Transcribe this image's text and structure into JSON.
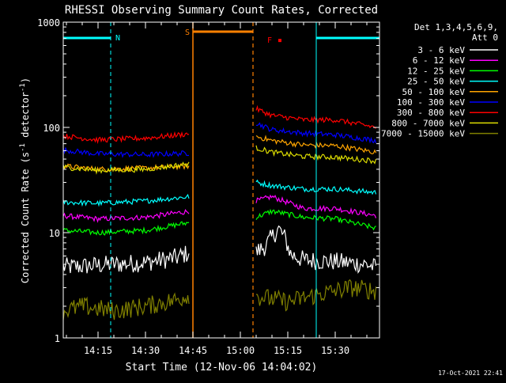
{
  "chart_data": {
    "type": "line",
    "title": "RHESSI Observing Summary Count Rates, Corrected",
    "xlabel": "Start Time (12-Nov-06 14:04:02)",
    "ylabel_main": "Corrected Count Rate (s",
    "ylabel_sup1": "-1",
    "ylabel_mid": " detector",
    "ylabel_sup2": "-1",
    "ylabel_end": ")",
    "yscale": "log",
    "ylim": [
      1,
      1000
    ],
    "xlim": [
      "14:04",
      "15:44"
    ],
    "x_ticks": [
      "14:15",
      "14:30",
      "14:45",
      "15:00",
      "15:15",
      "15:30"
    ],
    "y_ticks": [
      "1",
      "10",
      "100",
      "1000"
    ],
    "legend_position": "top-right",
    "legend_header": [
      "Det 1,3,4,5,6,9,",
      "Att 0"
    ],
    "series": [
      {
        "name": "3 - 6 keV",
        "color": "#ffffff",
        "segments": [
          {
            "x": [
              "14:04",
              "14:10",
              "14:20",
              "14:30",
              "14:40",
              "14:44"
            ],
            "y": [
              4.7,
              4.8,
              5.0,
              5.2,
              5.8,
              6.5
            ]
          },
          {
            "x": [
              "15:05",
              "15:08",
              "15:10",
              "15:12",
              "15:14",
              "15:16",
              "15:20",
              "15:30",
              "15:40",
              "15:43"
            ],
            "y": [
              6.5,
              7.5,
              9,
              11,
              9,
              6.2,
              5.5,
              5.3,
              5.0,
              4.6
            ]
          }
        ]
      },
      {
        "name": "6 - 12 keV",
        "color": "#ff00ff",
        "segments": [
          {
            "x": [
              "14:04",
              "14:15",
              "14:30",
              "14:44"
            ],
            "y": [
              14.5,
              13.5,
              14,
              16
            ]
          },
          {
            "x": [
              "15:05",
              "15:10",
              "15:20",
              "15:30",
              "15:43"
            ],
            "y": [
              20,
              22,
              17,
              17,
              14.5
            ]
          }
        ]
      },
      {
        "name": "12 - 25 keV",
        "color": "#00ff00",
        "segments": [
          {
            "x": [
              "14:04",
              "14:15",
              "14:30",
              "14:44"
            ],
            "y": [
              10.5,
              10,
              10.5,
              12.5
            ]
          },
          {
            "x": [
              "15:05",
              "15:10",
              "15:20",
              "15:30",
              "15:43"
            ],
            "y": [
              14,
              16,
              14,
              13.5,
              11
            ]
          }
        ]
      },
      {
        "name": "25 - 50 keV",
        "color": "#00ffff",
        "segments": [
          {
            "x": [
              "14:04",
              "14:15",
              "14:30",
              "14:44"
            ],
            "y": [
              19.5,
              19,
              20,
              22
            ]
          },
          {
            "x": [
              "15:05",
              "15:10",
              "15:20",
              "15:30",
              "15:43"
            ],
            "y": [
              30,
              28,
              26,
              26,
              24
            ]
          }
        ]
      },
      {
        "name": "50 - 100 keV",
        "color": "#ffa500",
        "segments": [
          {
            "x": [
              "14:04",
              "14:15",
              "14:30",
              "14:44"
            ],
            "y": [
              43,
              40,
              41,
              43
            ]
          },
          {
            "x": [
              "15:05",
              "15:10",
              "15:20",
              "15:30",
              "15:43"
            ],
            "y": [
              82,
              75,
              68,
              67,
              58
            ]
          }
        ]
      },
      {
        "name": "100 - 300 keV",
        "color": "#0000ff",
        "segments": [
          {
            "x": [
              "14:04",
              "14:15",
              "14:30",
              "14:44"
            ],
            "y": [
              61,
              56,
              55,
              57
            ]
          },
          {
            "x": [
              "15:05",
              "15:10",
              "15:20",
              "15:30",
              "15:43"
            ],
            "y": [
              110,
              95,
              88,
              85,
              75
            ]
          }
        ]
      },
      {
        "name": "300 - 800 keV",
        "color": "#ff0000",
        "segments": [
          {
            "x": [
              "14:04",
              "14:15",
              "14:30",
              "14:44"
            ],
            "y": [
              83,
              76,
              79,
              87
            ]
          },
          {
            "x": [
              "15:05",
              "15:10",
              "15:20",
              "15:30",
              "15:43"
            ],
            "y": [
              150,
              130,
              118,
              118,
              100
            ]
          }
        ]
      },
      {
        "name": "800 - 7000 keV",
        "color": "#dddd00",
        "segments": [
          {
            "x": [
              "14:04",
              "14:15",
              "14:30",
              "14:44"
            ],
            "y": [
              42,
              39,
              40,
              45
            ]
          },
          {
            "x": [
              "15:05",
              "15:10",
              "15:20",
              "15:30",
              "15:43"
            ],
            "y": [
              64,
              58,
              53,
              52,
              48
            ]
          }
        ]
      },
      {
        "name": "7000 - 15000 keV",
        "color": "#808000",
        "segments": [
          {
            "x": [
              "14:04",
              "14:10",
              "14:20",
              "14:30",
              "14:40",
              "14:44"
            ],
            "y": [
              1.8,
              2.0,
              1.8,
              2.0,
              2.3,
              2.6
            ]
          },
          {
            "x": [
              "15:05",
              "15:15",
              "15:25",
              "15:35",
              "15:43"
            ],
            "y": [
              2.5,
              2.2,
              2.6,
              3.0,
              2.8
            ]
          }
        ]
      }
    ],
    "annotations": {
      "night": {
        "label": "N",
        "color": "#00ffff",
        "periods": [
          [
            "14:04",
            "14:19"
          ],
          [
            "15:24",
            "15:44"
          ]
        ]
      },
      "saa": {
        "label": "S",
        "color": "#ff8000",
        "period": [
          "14:45",
          "15:04"
        ]
      },
      "flare": {
        "label": "F",
        "color": "#ff0000",
        "x": "15:12",
        "y": 670
      }
    }
  },
  "footer_date": "17-Oct-2021 22:41"
}
